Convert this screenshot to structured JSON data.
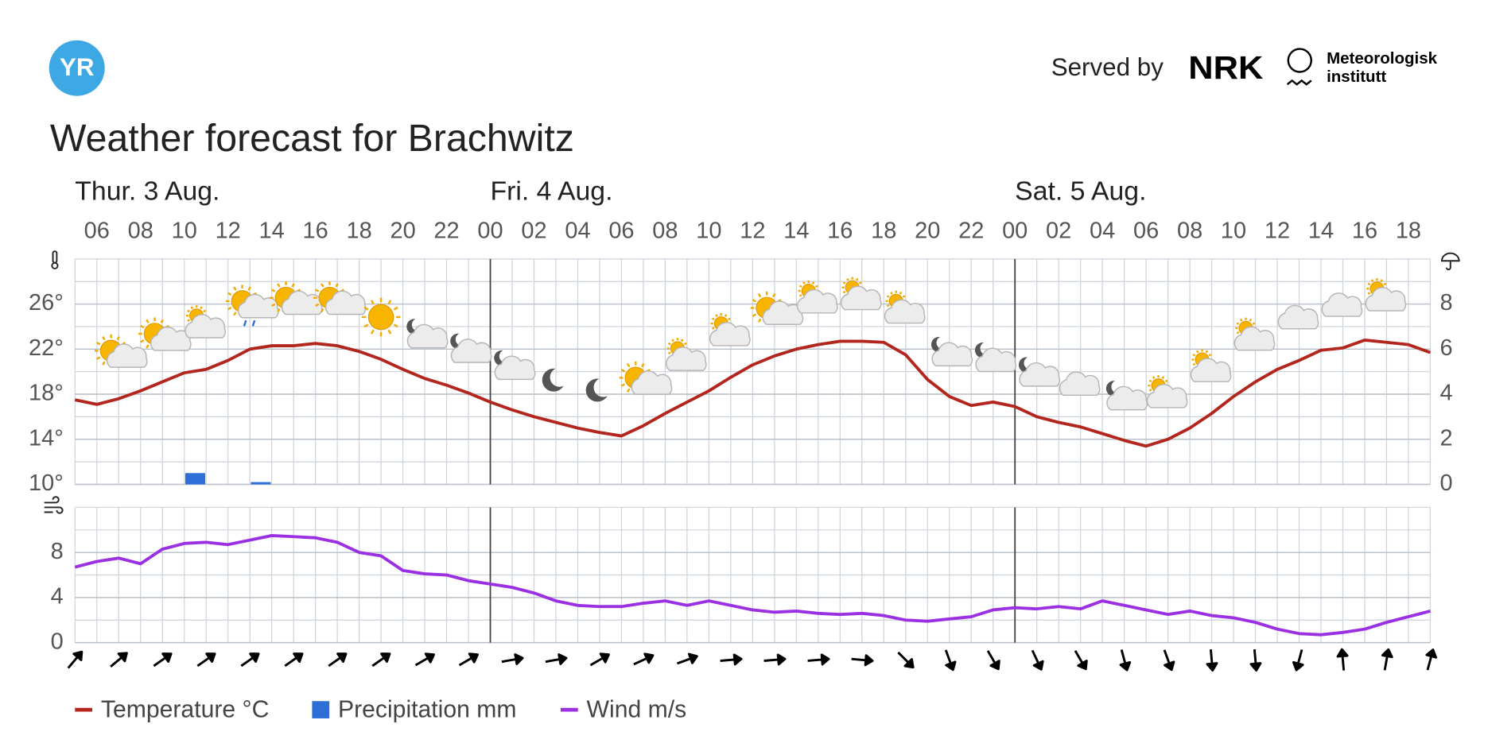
{
  "header": {
    "logo": "YR",
    "served_by": "Served by",
    "nrk": "NRK",
    "met": [
      "Meteorologisk",
      "institutt"
    ]
  },
  "title": "Weather forecast for Brachwitz",
  "days": [
    "Thur. 3 Aug.",
    "Fri. 4 Aug.",
    "Sat. 5 Aug."
  ],
  "hours": [
    "06",
    "08",
    "10",
    "12",
    "14",
    "16",
    "18",
    "20",
    "22",
    "00",
    "02",
    "04",
    "06",
    "08",
    "10",
    "12",
    "14",
    "16",
    "18",
    "20",
    "22",
    "00",
    "02",
    "04",
    "06",
    "08",
    "10",
    "12",
    "14",
    "16",
    "18"
  ],
  "chart_data": [
    {
      "type": "line",
      "ylim": [
        10,
        30
      ],
      "yticks": [
        {
          "value": 10,
          "label": "10°"
        },
        {
          "value": 14,
          "label": "14°"
        },
        {
          "value": 18,
          "label": "18°"
        },
        {
          "value": 22,
          "label": "22°"
        },
        {
          "value": 26,
          "label": "26°"
        }
      ],
      "y2lim": [
        0,
        10
      ],
      "y2ticks": [
        0,
        2,
        4,
        6,
        8
      ],
      "series": [
        {
          "name": "Temperature °C",
          "color": "#b3261e",
          "values": [
            17.5,
            17.1,
            17.6,
            18.3,
            19.1,
            19.9,
            20.2,
            21,
            22,
            22.3,
            22.3,
            22.5,
            22.3,
            21.8,
            21.1,
            20.2,
            19.4,
            18.8,
            18.1,
            17.3,
            16.6,
            16,
            15.5,
            15,
            14.6,
            14.3,
            15.2,
            16.3,
            17.3,
            18.3,
            19.5,
            20.6,
            21.4,
            22,
            22.4,
            22.7,
            22.7,
            22.6,
            21.5,
            19.3,
            17.8,
            17,
            17.3,
            16.9,
            16,
            15.5,
            15.1,
            14.5,
            13.9,
            13.4,
            14,
            15,
            16.3,
            17.8,
            19.1,
            20.2,
            21,
            21.9,
            22.1,
            22.8,
            22.6,
            22.4,
            21.7
          ]
        },
        {
          "name": "Precipitation mm",
          "color": "#2d6fd6",
          "axis": "y2",
          "type": "bar",
          "values": [
            0,
            0,
            0,
            0,
            0,
            0.5,
            0,
            0,
            0.1,
            0,
            0,
            0,
            0,
            0,
            0,
            0,
            0,
            0,
            0,
            0,
            0,
            0,
            0,
            0,
            0,
            0,
            0,
            0,
            0,
            0,
            0,
            0,
            0,
            0,
            0,
            0,
            0,
            0,
            0,
            0,
            0,
            0,
            0,
            0,
            0,
            0,
            0,
            0,
            0,
            0,
            0,
            0,
            0,
            0,
            0,
            0,
            0,
            0,
            0,
            0,
            0,
            0
          ]
        }
      ]
    },
    {
      "type": "line",
      "ylim": [
        0,
        12
      ],
      "yticks": [
        0,
        4,
        8
      ],
      "series": [
        {
          "name": "Wind m/s",
          "color": "#9b30e3",
          "values": [
            6.7,
            7.2,
            7.5,
            7.0,
            8.3,
            8.8,
            8.9,
            8.7,
            9.1,
            9.5,
            9.4,
            9.3,
            8.9,
            8.0,
            7.7,
            6.4,
            6.1,
            6.0,
            5.5,
            5.2,
            4.9,
            4.4,
            3.7,
            3.3,
            3.2,
            3.2,
            3.5,
            3.7,
            3.3,
            3.7,
            3.3,
            2.9,
            2.7,
            2.8,
            2.6,
            2.5,
            2.6,
            2.4,
            2.0,
            1.9,
            2.1,
            2.3,
            2.9,
            3.1,
            3.0,
            3.2,
            3.0,
            3.7,
            3.3,
            2.9,
            2.5,
            2.8,
            2.4,
            2.2,
            1.8,
            1.2,
            0.8,
            0.7,
            0.9,
            1.2,
            1.8,
            2.3,
            2.8
          ]
        }
      ],
      "wind_direction": [
        40,
        50,
        55,
        55,
        55,
        55,
        55,
        55,
        60,
        60,
        80,
        80,
        60,
        65,
        70,
        85,
        85,
        85,
        95,
        135,
        160,
        150,
        155,
        150,
        165,
        160,
        175,
        175,
        195,
        355,
        10,
        15
      ]
    }
  ]
}
